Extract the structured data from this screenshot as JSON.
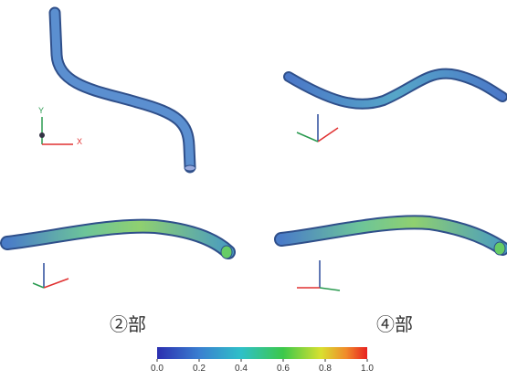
{
  "panels": [
    {
      "axis_labels": [
        "Y",
        "X"
      ]
    },
    {
      "caption": "②部"
    },
    {
      "caption": "④部"
    }
  ],
  "colorbar": {
    "lim": [
      0,
      1
    ],
    "ticks": [
      {
        "value": 0,
        "label": "0.0"
      },
      {
        "value": 0.2,
        "label": "0.2"
      },
      {
        "value": 0.4,
        "label": "0.4"
      },
      {
        "value": 0.6,
        "label": "0.6"
      },
      {
        "value": 0.8,
        "label": "0.8"
      },
      {
        "value": 1,
        "label": "1.0"
      }
    ]
  }
}
